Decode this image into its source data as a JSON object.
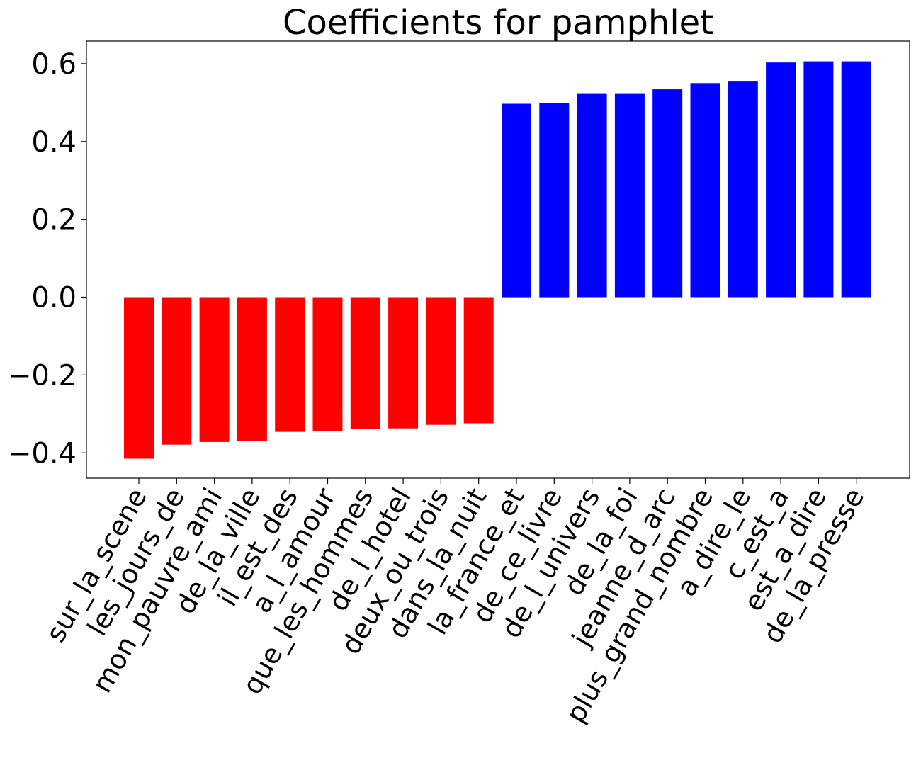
{
  "chart_data": {
    "type": "bar",
    "title": "Coefficients for pamphlet",
    "xlabel": "",
    "ylabel": "",
    "ylim": [
      -0.465,
      0.658
    ],
    "yticks": [
      {
        "value": 0.6,
        "label": "0.6"
      },
      {
        "value": 0.4,
        "label": "0.4"
      },
      {
        "value": 0.2,
        "label": "0.2"
      },
      {
        "value": 0.0,
        "label": "0.0"
      },
      {
        "value": -0.2,
        "label": "−0.2"
      },
      {
        "value": -0.4,
        "label": "−0.4"
      }
    ],
    "grid": false,
    "legend": "none",
    "colors": {
      "negative": "#ff0000",
      "positive": "#0000ff"
    },
    "categories": [
      "sur_la_scene",
      "les_jours_de",
      "mon_pauvre_ami",
      "de_la_ville",
      "il_est_des",
      "a_l_amour",
      "que_les_hommes",
      "de_l_hotel",
      "deux_ou_trois",
      "dans_la_nuit",
      "la_france_et",
      "de_ce_livre",
      "de_l_univers",
      "de_la_foi",
      "jeanne_d_arc",
      "plus_grand_nombre",
      "a_dire_le",
      "c_est_a",
      "est_a_dire",
      "de_la_presse"
    ],
    "values": [
      -0.415,
      -0.379,
      -0.372,
      -0.37,
      -0.346,
      -0.344,
      -0.338,
      -0.337,
      -0.328,
      -0.324,
      0.497,
      0.499,
      0.524,
      0.524,
      0.534,
      0.55,
      0.554,
      0.603,
      0.606,
      0.606
    ]
  }
}
